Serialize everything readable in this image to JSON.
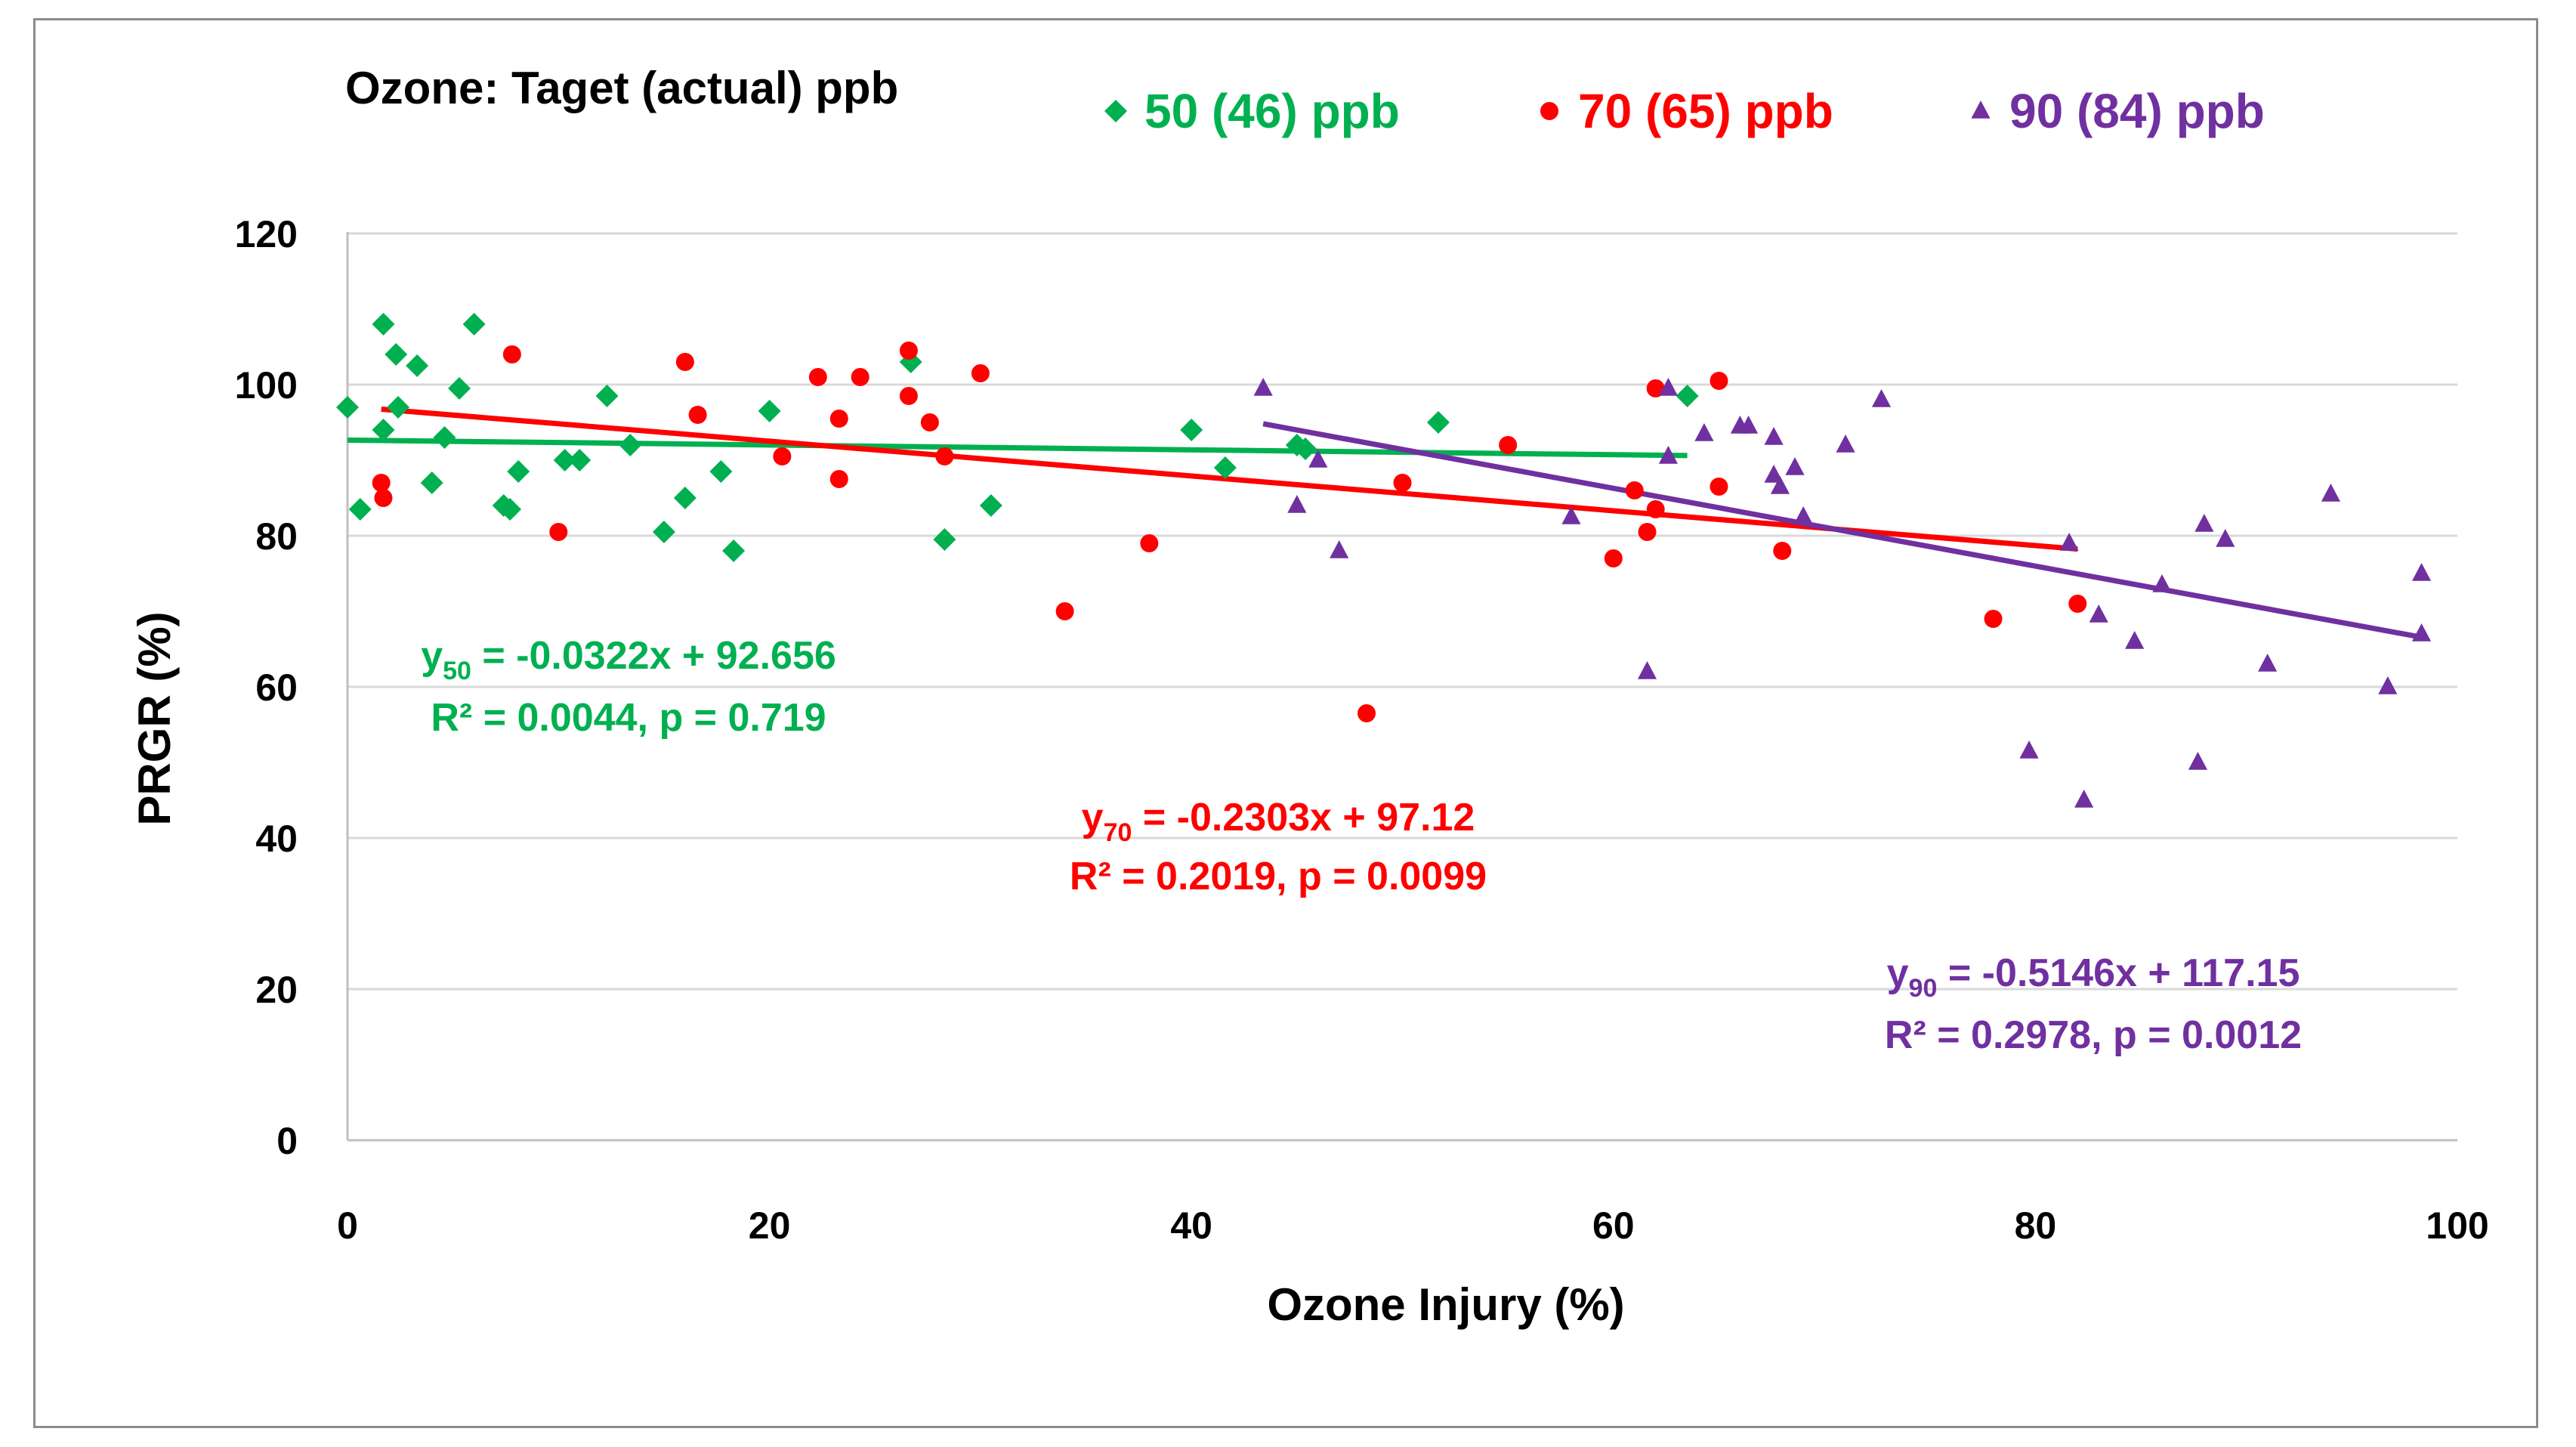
{
  "chart_data": {
    "type": "scatter",
    "title": "",
    "legend_title": "Ozone: Taget (actual) ppb",
    "legend_position": "top",
    "xlabel": "Ozone Injury (%)",
    "ylabel": "PRGR (%)",
    "xlim": [
      0,
      100
    ],
    "ylim": [
      0,
      120
    ],
    "xticks": [
      0,
      20,
      40,
      60,
      80,
      100
    ],
    "yticks": [
      0,
      20,
      40,
      60,
      80,
      100,
      120
    ],
    "grid": "horizontal",
    "series": [
      {
        "name": "50 (46) ppb",
        "color": "#00b050",
        "marker": "diamond",
        "points": [
          [
            0,
            97
          ],
          [
            0.6,
            83.5
          ],
          [
            1.7,
            108
          ],
          [
            1.7,
            94
          ],
          [
            2.3,
            104
          ],
          [
            2.4,
            97
          ],
          [
            3.3,
            102.5
          ],
          [
            4,
            87
          ],
          [
            4.6,
            93
          ],
          [
            5.3,
            99.5
          ],
          [
            6,
            108
          ],
          [
            7.4,
            84
          ],
          [
            7.7,
            83.5
          ],
          [
            8.1,
            88.5
          ],
          [
            10.3,
            90
          ],
          [
            11,
            90
          ],
          [
            12.3,
            98.5
          ],
          [
            13.4,
            92
          ],
          [
            15,
            80.5
          ],
          [
            16,
            85
          ],
          [
            17.7,
            88.5
          ],
          [
            18.3,
            78
          ],
          [
            20,
            96.5
          ],
          [
            26.7,
            103
          ],
          [
            28.3,
            79.5
          ],
          [
            30.5,
            84
          ],
          [
            40,
            94
          ],
          [
            41.6,
            89
          ],
          [
            45,
            92
          ],
          [
            45.4,
            91.5
          ],
          [
            51.7,
            95
          ],
          [
            63.5,
            98.5
          ]
        ]
      },
      {
        "name": "70 (65) ppb",
        "color": "#ff0000",
        "marker": "circle",
        "points": [
          [
            1.6,
            87
          ],
          [
            1.7,
            85
          ],
          [
            7.8,
            104
          ],
          [
            10,
            80.5
          ],
          [
            16,
            103
          ],
          [
            16.6,
            96
          ],
          [
            20.6,
            90.5
          ],
          [
            22.3,
            101
          ],
          [
            23.3,
            95.5
          ],
          [
            23.3,
            87.5
          ],
          [
            24.3,
            101
          ],
          [
            26.6,
            104.5
          ],
          [
            26.6,
            98.5
          ],
          [
            27.6,
            95
          ],
          [
            28.3,
            90.5
          ],
          [
            30,
            101.5
          ],
          [
            34,
            70
          ],
          [
            38,
            79
          ],
          [
            48.3,
            56.5
          ],
          [
            50,
            87
          ],
          [
            55,
            92
          ],
          [
            60,
            77
          ],
          [
            61,
            86
          ],
          [
            61.6,
            80.5
          ],
          [
            62,
            83.5
          ],
          [
            62,
            99.5
          ],
          [
            65,
            100.5
          ],
          [
            65,
            86.5
          ],
          [
            68,
            78
          ],
          [
            78,
            69
          ],
          [
            82,
            71
          ]
        ]
      },
      {
        "name": "90 (84) ppb",
        "color": "#7030a0",
        "marker": "triangle",
        "points": [
          [
            43.4,
            99.5
          ],
          [
            45,
            84
          ],
          [
            46,
            90
          ],
          [
            47,
            78
          ],
          [
            58,
            82.5
          ],
          [
            61.6,
            62
          ],
          [
            62.6,
            90.5
          ],
          [
            62.6,
            99.5
          ],
          [
            64.3,
            93.5
          ],
          [
            66,
            94.5
          ],
          [
            66.4,
            94.5
          ],
          [
            67.6,
            93
          ],
          [
            67.6,
            88
          ],
          [
            67.9,
            86.5
          ],
          [
            68.6,
            89
          ],
          [
            69,
            82.5
          ],
          [
            71,
            92
          ],
          [
            72.7,
            98
          ],
          [
            79.7,
            51.5
          ],
          [
            81.6,
            79
          ],
          [
            82.3,
            45
          ],
          [
            83,
            69.5
          ],
          [
            84.7,
            66
          ],
          [
            86,
            73.5
          ],
          [
            87.7,
            50
          ],
          [
            88,
            81.5
          ],
          [
            89,
            79.5
          ],
          [
            91,
            63
          ],
          [
            94,
            85.5
          ],
          [
            96.7,
            60
          ],
          [
            98.3,
            75
          ],
          [
            98.3,
            67
          ]
        ]
      }
    ],
    "trendlines": [
      {
        "series": "50 (46) ppb",
        "slope": -0.0322,
        "intercept": 92.656,
        "x_range": [
          0,
          63.5
        ]
      },
      {
        "series": "70 (65) ppb",
        "slope": -0.2303,
        "intercept": 97.12,
        "x_range": [
          1.6,
          82
        ]
      },
      {
        "series": "90 (84) ppb",
        "slope": -0.5146,
        "intercept": 117.15,
        "x_range": [
          43.4,
          98.3
        ]
      }
    ],
    "annotations": [
      {
        "series": "50 (46) ppb",
        "eq_prefix": "y",
        "eq_sub": "50",
        "eq_rest": " = -0.0322x + 92.656",
        "stats": "R² = 0.0044, p = 0.719"
      },
      {
        "series": "70 (65) ppb",
        "eq_prefix": "y",
        "eq_sub": "70",
        "eq_rest": " = -0.2303x + 97.12",
        "stats": "R² = 0.2019, p = 0.0099"
      },
      {
        "series": "90 (84) ppb",
        "eq_prefix": "y",
        "eq_sub": "90",
        "eq_rest": " = -0.5146x + 117.15",
        "stats": "R² = 0.2978, p = 0.0012"
      }
    ]
  }
}
